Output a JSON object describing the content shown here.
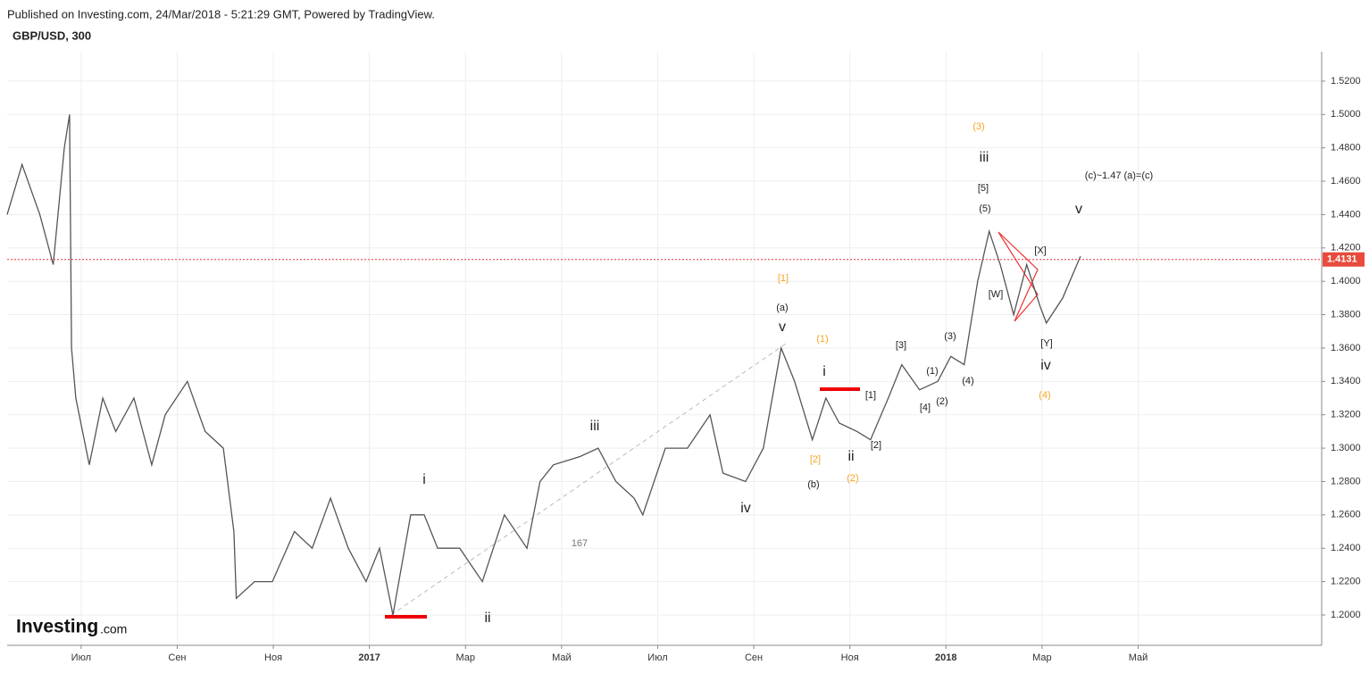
{
  "header": {
    "published": "Published on Investing.com, 24/Mar/2018 - 5:21:29 GMT, Powered by TradingView.",
    "symbol": "GBP/USD, 300",
    "logo": "Investing",
    "logo_suffix": ".com"
  },
  "chart_data": {
    "type": "line",
    "color": "#555555",
    "x": [
      -1.54,
      -1.23,
      -0.86,
      -0.58,
      -0.35,
      -0.24,
      -0.2,
      -0.11,
      0.17,
      0.45,
      0.72,
      1.1,
      1.47,
      1.75,
      2.21,
      2.58,
      2.96,
      3.18,
      3.23,
      3.61,
      3.98,
      4.44,
      4.81,
      5.19,
      5.56,
      5.93,
      6.21,
      6.49,
      6.86,
      7.14,
      7.42,
      7.88,
      8.35,
      8.81,
      9.28,
      9.55,
      9.83,
      10.39,
      10.76,
      11.13,
      11.51,
      11.69,
      12.16,
      12.62,
      13.09,
      13.36,
      13.83,
      14.2,
      14.57,
      14.85,
      15.22,
      15.5,
      15.78,
      16.15,
      16.43,
      16.8,
      17.08,
      17.45,
      17.83,
      18.1,
      18.38,
      18.66,
      18.9,
      19.13,
      19.41,
      19.68,
      19.96,
      20.09,
      20.43,
      20.8
    ],
    "values": [
      1.44,
      1.47,
      1.44,
      1.41,
      1.48,
      1.5,
      1.36,
      1.33,
      1.29,
      1.33,
      1.31,
      1.33,
      1.29,
      1.32,
      1.34,
      1.31,
      1.3,
      1.25,
      1.21,
      1.22,
      1.22,
      1.25,
      1.24,
      1.27,
      1.24,
      1.22,
      1.24,
      1.2,
      1.26,
      1.26,
      1.24,
      1.24,
      1.22,
      1.26,
      1.24,
      1.28,
      1.29,
      1.295,
      1.3,
      1.28,
      1.27,
      1.26,
      1.3,
      1.3,
      1.32,
      1.285,
      1.28,
      1.3,
      1.36,
      1.34,
      1.305,
      1.33,
      1.315,
      1.31,
      1.305,
      1.33,
      1.35,
      1.335,
      1.34,
      1.355,
      1.35,
      1.4,
      1.43,
      1.41,
      1.38,
      1.41,
      1.385,
      1.375,
      1.39,
      1.415
    ],
    "xlim": [
      -1.54,
      25.82
    ],
    "xticks": [
      {
        "value": 0,
        "label": "Июл"
      },
      {
        "value": 2,
        "label": "Сен"
      },
      {
        "value": 4,
        "label": "Ноя"
      },
      {
        "value": 6,
        "label": "2017"
      },
      {
        "value": 8,
        "label": "Мар"
      },
      {
        "value": 10,
        "label": "Май"
      },
      {
        "value": 12,
        "label": "Июл"
      },
      {
        "value": 14,
        "label": "Сен"
      },
      {
        "value": 16,
        "label": "Ноя"
      },
      {
        "value": 18,
        "label": "2018"
      },
      {
        "value": 20,
        "label": "Мар"
      },
      {
        "value": 22,
        "label": "Май"
      }
    ],
    "ylim": [
      1.1818,
      1.5376
    ],
    "yticks": [
      {
        "value": 1.2,
        "label": "1.2000"
      },
      {
        "value": 1.22,
        "label": "1.2200"
      },
      {
        "value": 1.24,
        "label": "1.2400"
      },
      {
        "value": 1.26,
        "label": "1.2600"
      },
      {
        "value": 1.28,
        "label": "1.2800"
      },
      {
        "value": 1.3,
        "label": "1.3000"
      },
      {
        "value": 1.32,
        "label": "1.3200"
      },
      {
        "value": 1.34,
        "label": "1.3400"
      },
      {
        "value": 1.36,
        "label": "1.3600"
      },
      {
        "value": 1.38,
        "label": "1.3800"
      },
      {
        "value": 1.4,
        "label": "1.4000"
      },
      {
        "value": 1.42,
        "label": "1.4200"
      },
      {
        "value": 1.44,
        "label": "1.4400"
      },
      {
        "value": 1.46,
        "label": "1.4600"
      },
      {
        "value": 1.48,
        "label": "1.4800"
      },
      {
        "value": 1.5,
        "label": "1.5000"
      },
      {
        "value": 1.52,
        "label": "1.5200"
      }
    ],
    "grid": true,
    "last_price": 1.4131,
    "annotations": [
      {
        "text": "(3)",
        "color": "#f5a623"
      },
      {
        "text": "iii",
        "color": "#222"
      },
      {
        "text": "[5]",
        "color": "#222"
      },
      {
        "text": "(5)",
        "color": "#222"
      },
      {
        "text": "(c)~1.47 (a)=(c)",
        "color": "#222"
      },
      {
        "text": "v",
        "color": "#222"
      },
      {
        "text": "[X]",
        "color": "#222"
      },
      {
        "text": "[W]",
        "color": "#222"
      },
      {
        "text": "[Y]",
        "color": "#222"
      },
      {
        "text": "iv",
        "color": "#222"
      },
      {
        "text": "(4)",
        "color": "#f5a623"
      },
      {
        "text": "[1]",
        "color": "#f5a623"
      },
      {
        "text": "(a)",
        "color": "#222"
      },
      {
        "text": "v",
        "color": "#222"
      },
      {
        "text": "(1)",
        "color": "#f5a623"
      },
      {
        "text": "i",
        "color": "#222"
      },
      {
        "text": "[3]",
        "color": "#222"
      },
      {
        "text": "(3)",
        "color": "#222"
      },
      {
        "text": "(1)",
        "color": "#222"
      },
      {
        "text": "(4)",
        "color": "#222"
      },
      {
        "text": "[1]",
        "color": "#222"
      },
      {
        "text": "[4]",
        "color": "#222"
      },
      {
        "text": "(2)",
        "color": "#222"
      },
      {
        "text": "[2]",
        "color": "#222"
      },
      {
        "text": "[2]",
        "color": "#f5a623"
      },
      {
        "text": "ii",
        "color": "#222"
      },
      {
        "text": "(b)",
        "color": "#222"
      },
      {
        "text": "(2)",
        "color": "#f5a623"
      },
      {
        "text": "iii",
        "color": "#222"
      },
      {
        "text": "iv",
        "color": "#222"
      },
      {
        "text": "i",
        "color": "#222"
      },
      {
        "text": "ii",
        "color": "#222"
      },
      {
        "text": "167",
        "color": "#777"
      }
    ]
  }
}
